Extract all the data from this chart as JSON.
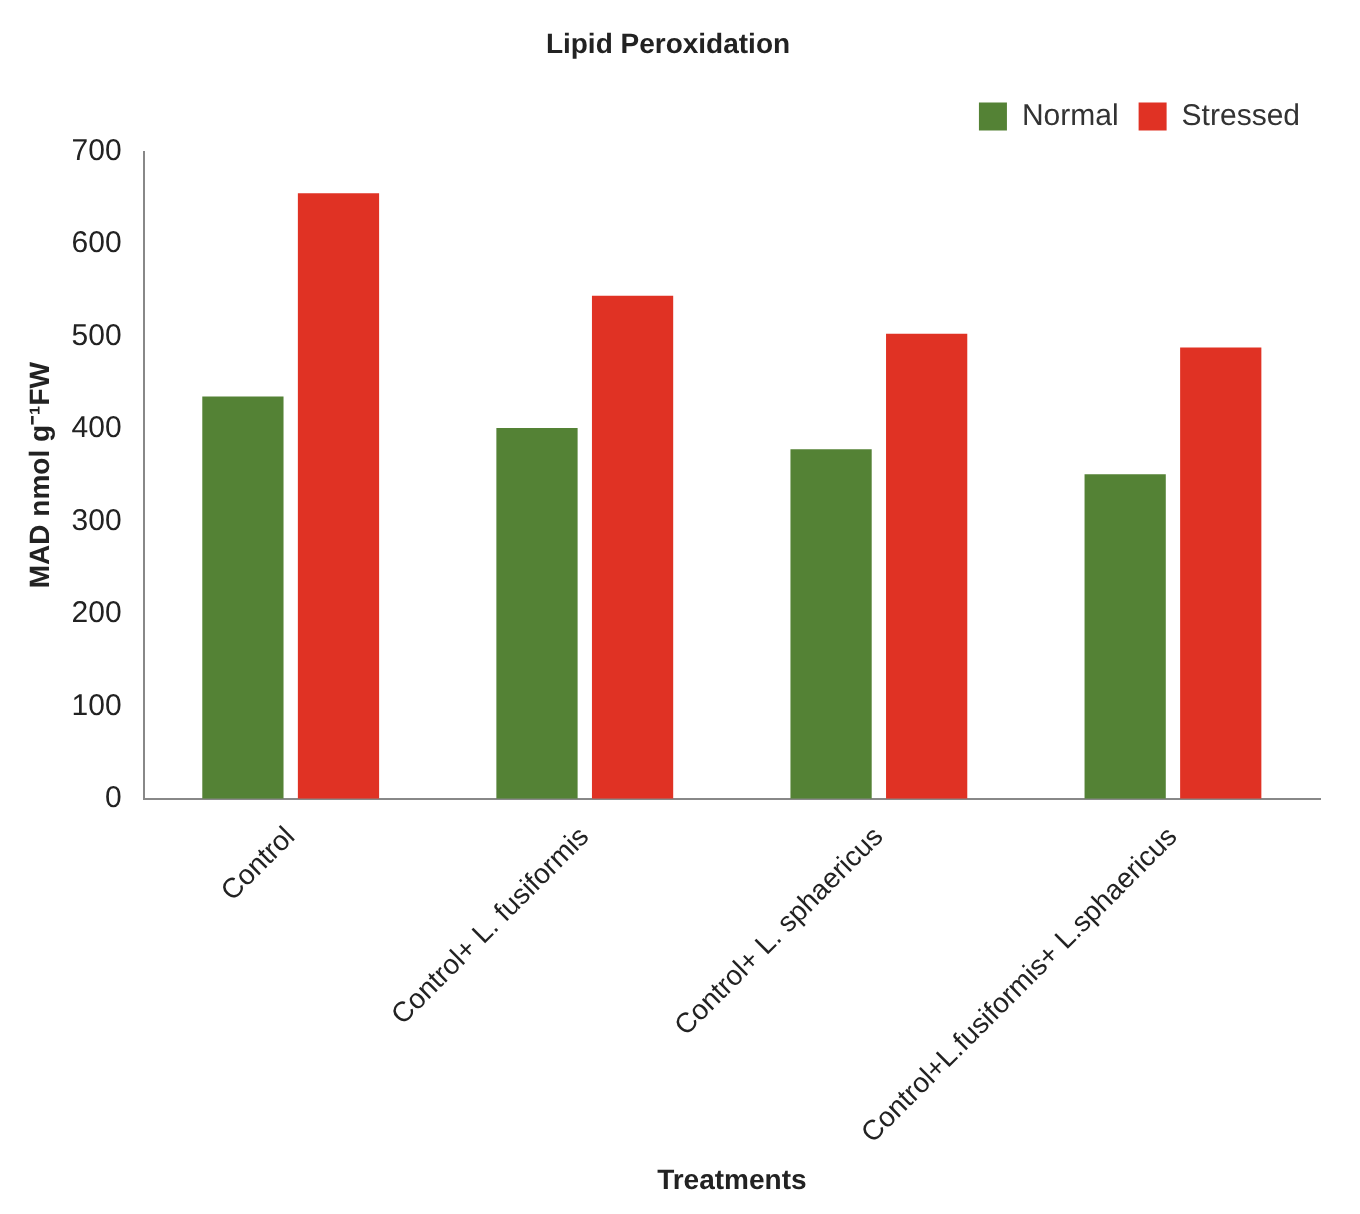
{
  "chart_data": {
    "type": "bar",
    "title": "Lipid Peroxidation",
    "xlabel": "Treatments",
    "ylabel": "MAD nmol g⁻¹FW",
    "categories": [
      "Control",
      "Control+ L. fusiformis",
      "Control+ L. sphaericus",
      "Control+L.fusiformis+ L.sphaericus"
    ],
    "series": [
      {
        "name": "Normal",
        "color": "#548235",
        "values": [
          435,
          401,
          378,
          351
        ]
      },
      {
        "name": "Stressed",
        "color": "#e03224",
        "values": [
          655,
          544,
          503,
          488
        ]
      }
    ],
    "ylim": [
      0,
      700
    ],
    "yticks": [
      0,
      100,
      200,
      300,
      400,
      500,
      600,
      700
    ],
    "grid": false,
    "legend": "top right"
  }
}
